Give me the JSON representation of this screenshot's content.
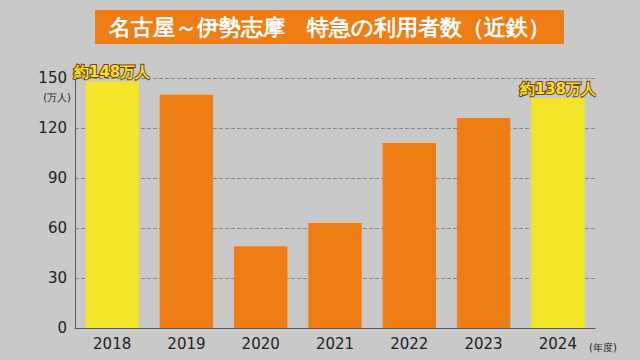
{
  "chart_data": {
    "type": "bar",
    "title": "名古屋～伊勢志摩　特急の利用者数（近鉄）",
    "categories": [
      "2018",
      "2019",
      "2020",
      "2021",
      "2022",
      "2023",
      "2024"
    ],
    "values": [
      148,
      140,
      49,
      63,
      111,
      126,
      138
    ],
    "colors": [
      "#f2e52a",
      "#f07c14",
      "#f07c14",
      "#f07c14",
      "#f07c14",
      "#f07c14",
      "#f2e52a"
    ],
    "ylim": [
      0,
      150
    ],
    "yticks": [
      0,
      30,
      60,
      90,
      120,
      150
    ],
    "ylabel": "(万人)",
    "xlabel": "(年度)",
    "annotations": [
      {
        "category": "2018",
        "text": "約148万人"
      },
      {
        "category": "2024",
        "text": "約138万人"
      }
    ],
    "grid": true
  }
}
